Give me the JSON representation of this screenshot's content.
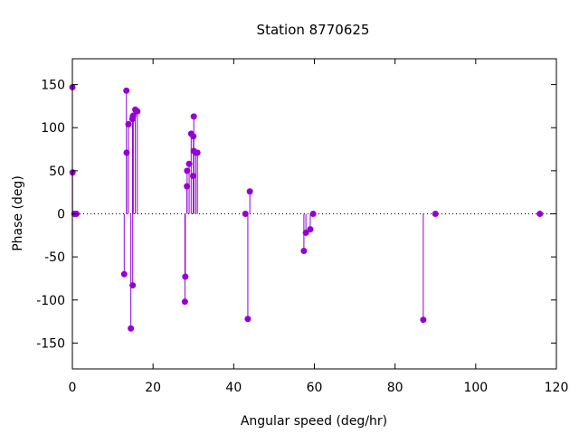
{
  "chart_data": {
    "type": "scatter",
    "style": "impulses-with-points",
    "title": "Station 8770625",
    "xlabel": "Angular speed (deg/hr)",
    "ylabel": "Phase (deg)",
    "xlim": [
      0,
      120
    ],
    "ylim": [
      -180,
      180
    ],
    "xticks": [
      0,
      20,
      40,
      60,
      80,
      100,
      120
    ],
    "yticks": [
      -150,
      -100,
      -50,
      0,
      50,
      100,
      150
    ],
    "zero_line": true,
    "grid": false,
    "color": "#9400d3",
    "points": [
      {
        "x": 0.0,
        "y": 147
      },
      {
        "x": 0.04,
        "y": 48
      },
      {
        "x": 0.5,
        "y": 0
      },
      {
        "x": 1.0,
        "y": 0
      },
      {
        "x": 12.85,
        "y": -70
      },
      {
        "x": 13.4,
        "y": 143
      },
      {
        "x": 13.45,
        "y": 71
      },
      {
        "x": 13.9,
        "y": 104
      },
      {
        "x": 14.5,
        "y": -133
      },
      {
        "x": 14.9,
        "y": 110
      },
      {
        "x": 14.96,
        "y": -83
      },
      {
        "x": 15.0,
        "y": 113
      },
      {
        "x": 15.1,
        "y": 114
      },
      {
        "x": 15.6,
        "y": 121
      },
      {
        "x": 16.1,
        "y": 119
      },
      {
        "x": 27.9,
        "y": -102
      },
      {
        "x": 28.0,
        "y": -73
      },
      {
        "x": 28.4,
        "y": 32
      },
      {
        "x": 28.45,
        "y": 50
      },
      {
        "x": 28.95,
        "y": 58
      },
      {
        "x": 29.45,
        "y": 93
      },
      {
        "x": 29.95,
        "y": 44
      },
      {
        "x": 30.0,
        "y": 90
      },
      {
        "x": 30.1,
        "y": 113
      },
      {
        "x": 30.1,
        "y": 73
      },
      {
        "x": 30.6,
        "y": 71
      },
      {
        "x": 31.0,
        "y": 71
      },
      {
        "x": 42.9,
        "y": 0
      },
      {
        "x": 43.5,
        "y": -122
      },
      {
        "x": 44.0,
        "y": 26
      },
      {
        "x": 57.4,
        "y": -43
      },
      {
        "x": 57.9,
        "y": -22
      },
      {
        "x": 58.98,
        "y": -18
      },
      {
        "x": 59.7,
        "y": 0
      },
      {
        "x": 87.0,
        "y": -123
      },
      {
        "x": 90.0,
        "y": 0
      },
      {
        "x": 115.9,
        "y": 0
      }
    ]
  }
}
